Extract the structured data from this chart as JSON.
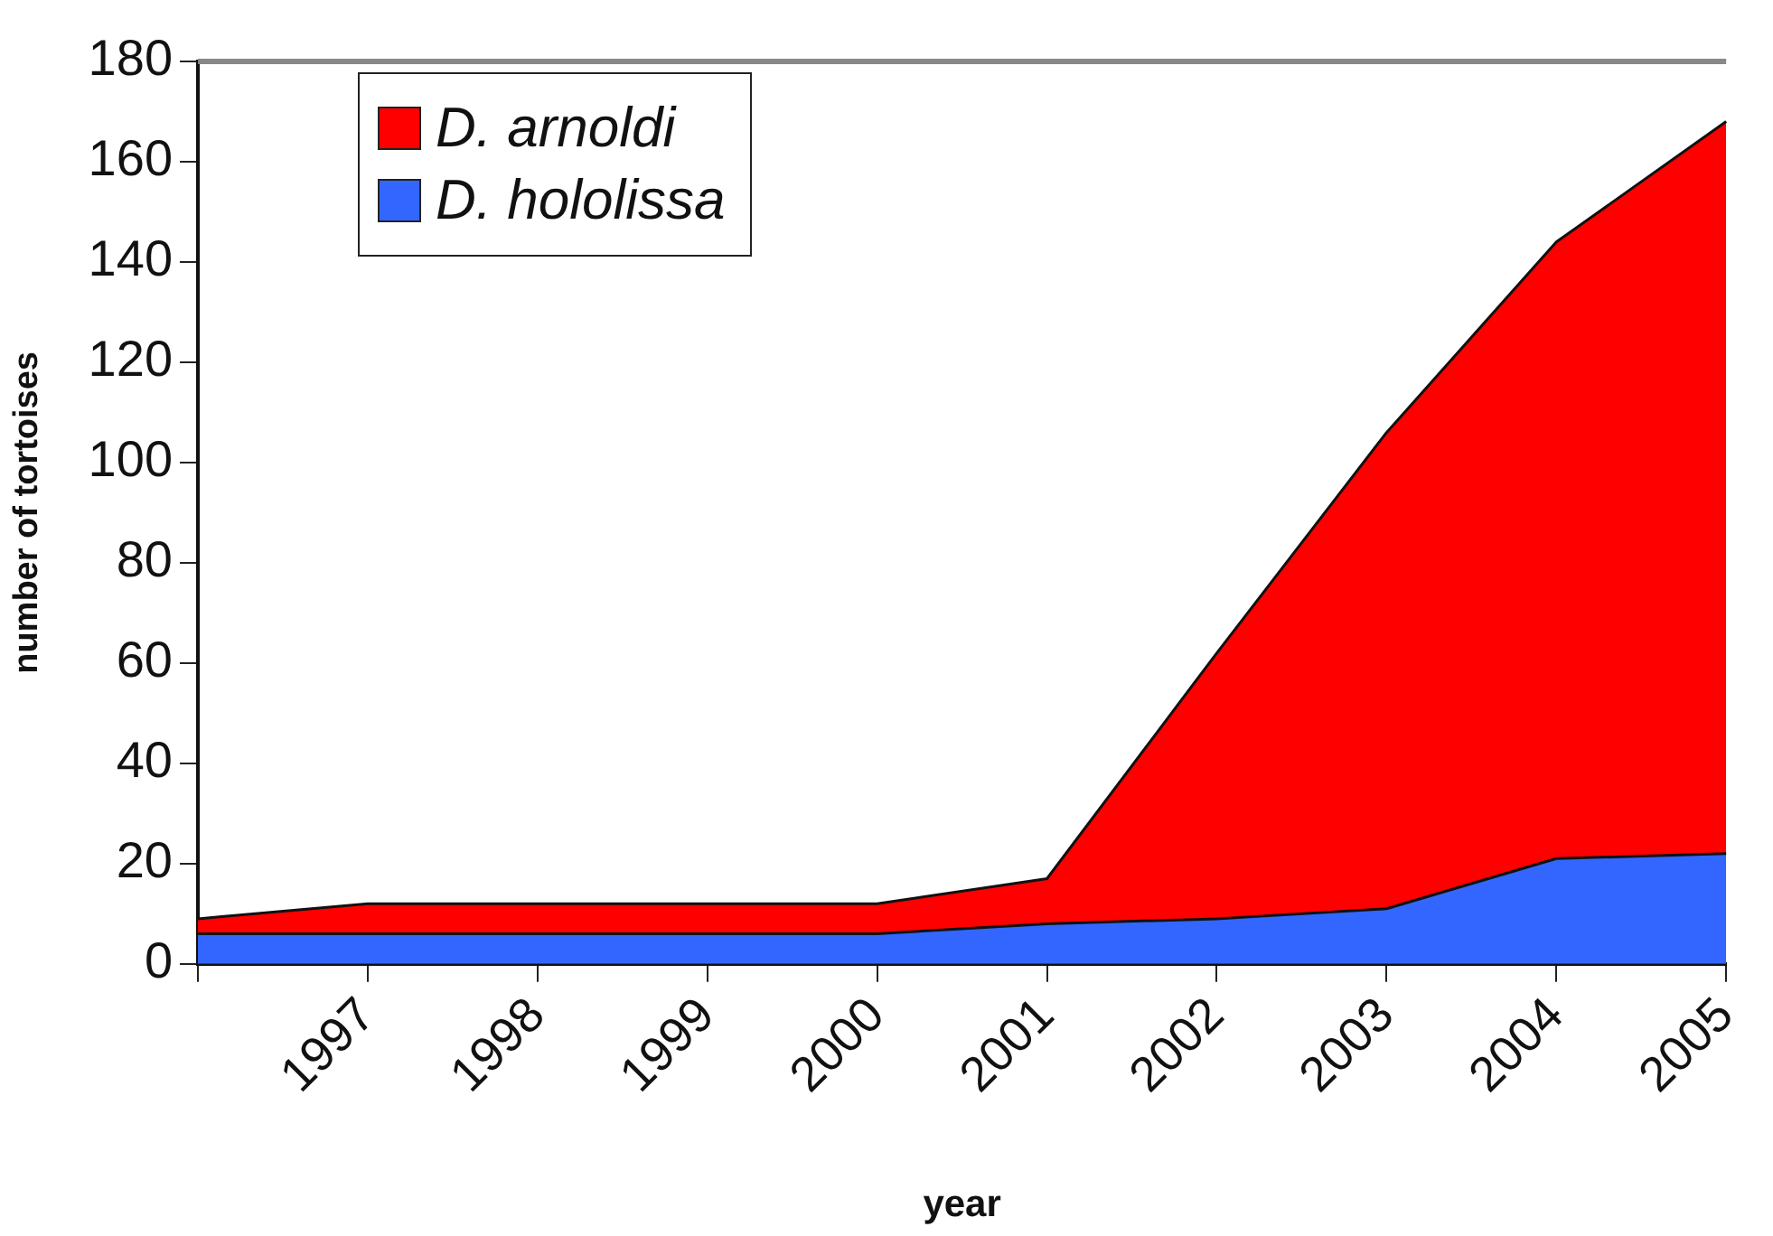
{
  "chart_data": {
    "type": "area",
    "stacked": true,
    "xlabel": "year",
    "ylabel": "number of tortoises",
    "categories": [
      null,
      "1997",
      "1998",
      "1999",
      "2000",
      "2001",
      "2002",
      "2003",
      "2004",
      "2005"
    ],
    "series": [
      {
        "name": "D. hololissa",
        "color": "#3366ff",
        "values": [
          6,
          6,
          6,
          6,
          6,
          8,
          9,
          11,
          21,
          22
        ]
      },
      {
        "name": "D. arnoldi",
        "color": "#ff0000",
        "values": [
          3,
          6,
          6,
          6,
          6,
          9,
          53,
          95,
          123,
          146
        ]
      }
    ],
    "ylim": [
      0,
      180
    ],
    "yticks": [
      0,
      20,
      40,
      60,
      80,
      100,
      120,
      140,
      160,
      180
    ],
    "grid": false,
    "legend": "top left"
  }
}
